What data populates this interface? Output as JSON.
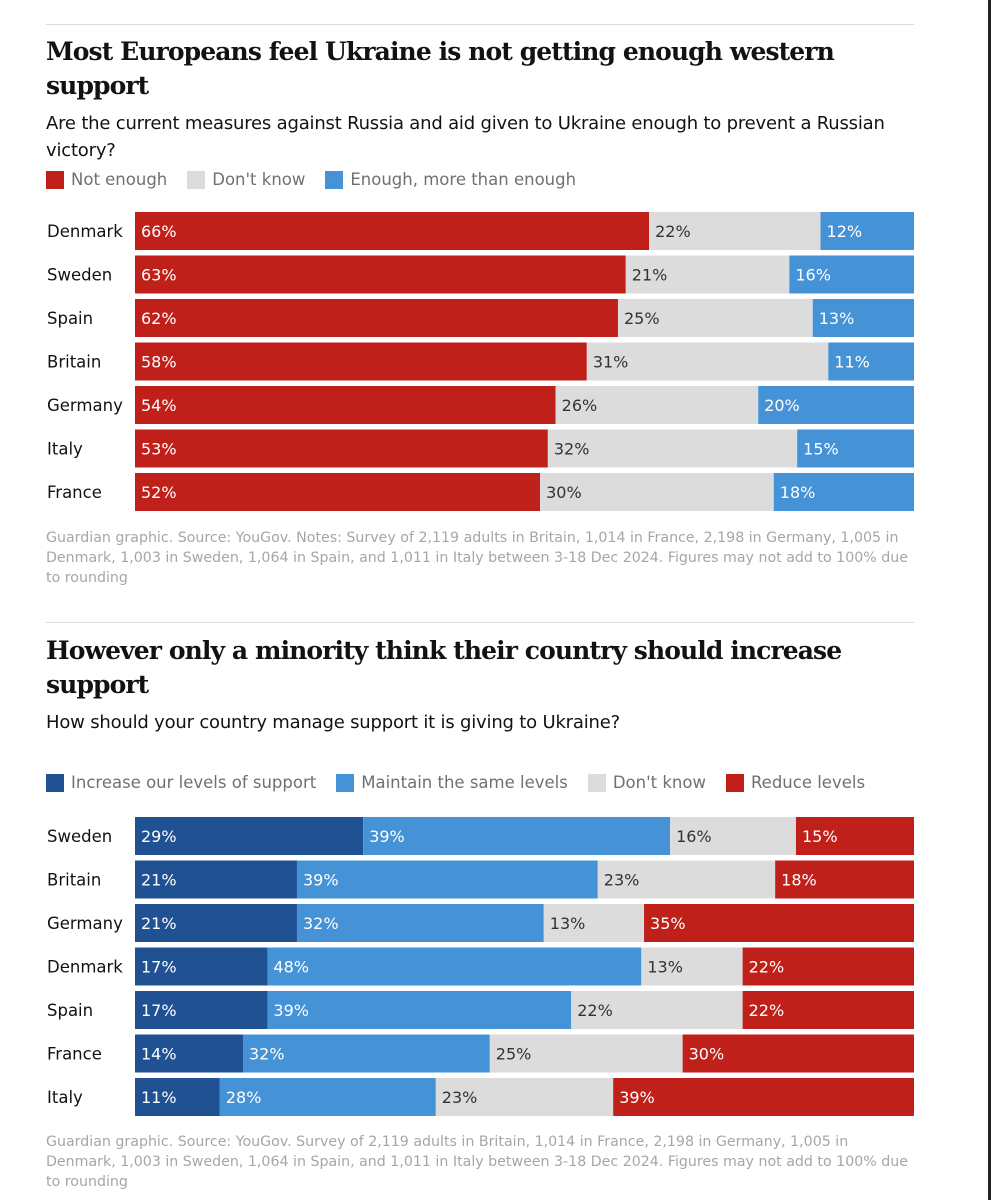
{
  "colors": {
    "not_enough": "#c0201a",
    "dont_know": "#dcdcdc",
    "enough": "#4592d6",
    "increase": "#1f5193",
    "maintain": "#4592d6",
    "reduce": "#c0201a"
  },
  "charts": {
    "top": {
      "title": "Most Europeans feel Ukraine is not getting enough western support",
      "subtitle": "Are the current measures against Russia and aid given to Ukraine enough to prevent a Russian victory?",
      "note": "Guardian graphic. Source: YouGov. Notes: Survey of 2,119 adults in Britain, 1,014 in France, 2,198 in Germany, 1,005 in Denmark, 1,003 in Sweden, 1,064 in Spain, and 1,011 in Italy between 3-18 Dec 2024. Figures may not add to 100% due to rounding"
    },
    "bottom": {
      "title": "However only a minority think their country should increase support",
      "subtitle": "How should your country manage support it is giving to Ukraine?",
      "note": "Guardian graphic. Source: YouGov. Survey of 2,119 adults in Britain, 1,014 in France, 2,198 in Germany, 1,005 in Denmark, 1,003 in Sweden, 1,064 in Spain, and 1,011 in Italy between 3-18 Dec 2024. Figures may not add to 100% due to rounding"
    }
  },
  "chart_data": [
    {
      "type": "bar",
      "orientation": "horizontal",
      "stacked": true,
      "title": "Most Europeans feel Ukraine is not getting enough western support",
      "subtitle": "Are the current measures against Russia and aid given to Ukraine enough to prevent a Russian victory?",
      "unit": "%",
      "categories": [
        "Denmark",
        "Sweden",
        "Spain",
        "Britain",
        "Germany",
        "Italy",
        "France"
      ],
      "series": [
        {
          "name": "Not enough",
          "color": "#c0201a",
          "label_color": "#ffffff",
          "values": [
            66,
            63,
            62,
            58,
            54,
            53,
            52
          ]
        },
        {
          "name": "Don't know",
          "color": "#dcdcdc",
          "label_color": "#333333",
          "values": [
            22,
            21,
            25,
            31,
            26,
            32,
            30
          ]
        },
        {
          "name": "Enough, more than enough",
          "color": "#4592d6",
          "label_color": "#ffffff",
          "values": [
            12,
            16,
            13,
            11,
            20,
            15,
            18
          ]
        }
      ],
      "legend_position": "top-left"
    },
    {
      "type": "bar",
      "orientation": "horizontal",
      "stacked": true,
      "title": "However only a minority think their country should increase support",
      "subtitle": "How should your country manage support it is giving to Ukraine?",
      "unit": "%",
      "categories": [
        "Sweden",
        "Britain",
        "Germany",
        "Denmark",
        "Spain",
        "France",
        "Italy"
      ],
      "series": [
        {
          "name": "Increase our levels of support",
          "color": "#1f5193",
          "label_color": "#ffffff",
          "values": [
            29,
            21,
            21,
            17,
            17,
            14,
            11
          ]
        },
        {
          "name": "Maintain the same levels",
          "color": "#4592d6",
          "label_color": "#ffffff",
          "values": [
            39,
            39,
            32,
            48,
            39,
            32,
            28
          ]
        },
        {
          "name": "Don't know",
          "color": "#dcdcdc",
          "label_color": "#333333",
          "values": [
            16,
            23,
            13,
            13,
            22,
            25,
            23
          ]
        },
        {
          "name": "Reduce levels",
          "color": "#c0201a",
          "label_color": "#ffffff",
          "values": [
            15,
            18,
            35,
            22,
            22,
            30,
            39
          ]
        }
      ],
      "legend_position": "top-left"
    }
  ]
}
